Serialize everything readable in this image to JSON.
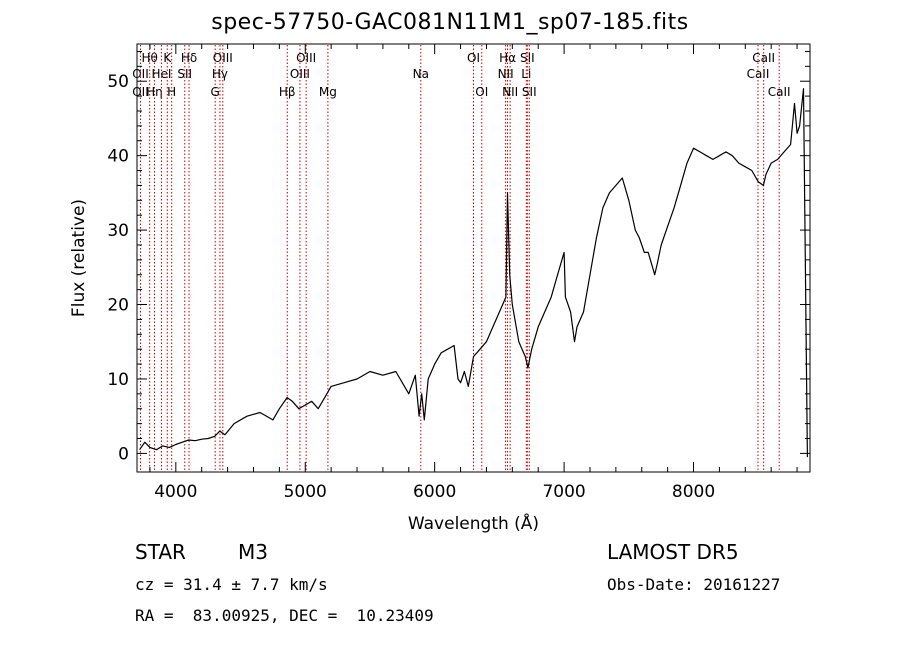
{
  "chart_data": {
    "type": "line",
    "title": "spec-57750-GAC081N11M1_sp07-185.fits",
    "xlabel": "Wavelength (Å)",
    "ylabel": "Flux (relative)",
    "xlim": [
      3700,
      8900
    ],
    "ylim": [
      -2.5,
      55
    ],
    "xticks": [
      4000,
      5000,
      6000,
      7000,
      8000
    ],
    "yticks": [
      0,
      10,
      20,
      30,
      40,
      50
    ],
    "grid": false,
    "line_color": "#000000",
    "marker_color": "#cc0000",
    "series": [
      {
        "values_x": [
          3720,
          3760,
          3800,
          3850,
          3900,
          3950,
          4000,
          4050,
          4100,
          4150,
          4200,
          4250,
          4300,
          4340,
          4380,
          4450,
          4550,
          4650,
          4750,
          4800,
          4860,
          4900,
          4950,
          5000,
          5050,
          5100,
          5150,
          5200,
          5300,
          5400,
          5500,
          5600,
          5700,
          5800,
          5850,
          5880,
          5900,
          5920,
          5950,
          6000,
          6050,
          6100,
          6150,
          6180,
          6200,
          6230,
          6260,
          6300,
          6350,
          6400,
          6450,
          6500,
          6550,
          6563,
          6580,
          6600,
          6650,
          6700,
          6720,
          6750,
          6800,
          6850,
          6900,
          6950,
          7000,
          7010,
          7050,
          7080,
          7100,
          7150,
          7200,
          7250,
          7300,
          7350,
          7400,
          7450,
          7500,
          7550,
          7580,
          7600,
          7620,
          7650,
          7700,
          7720,
          7750,
          7800,
          7850,
          7900,
          7950,
          8000,
          8050,
          8100,
          8150,
          8200,
          8250,
          8300,
          8350,
          8400,
          8450,
          8500,
          8540,
          8560,
          8600,
          8650,
          8700,
          8750,
          8780,
          8800,
          8820,
          8850,
          8880
        ],
        "values_y": [
          0.5,
          1.5,
          0.8,
          0.5,
          1.0,
          0.8,
          1.2,
          1.5,
          1.8,
          1.7,
          1.9,
          2.0,
          2.3,
          3.0,
          2.5,
          4.0,
          5.0,
          5.5,
          4.5,
          6.0,
          7.5,
          7.0,
          6.0,
          6.5,
          7.0,
          6.0,
          7.5,
          9.0,
          9.5,
          10.0,
          11.0,
          10.5,
          11.0,
          8.0,
          10.5,
          5.0,
          8.0,
          4.5,
          10.0,
          12.0,
          13.5,
          14.0,
          14.5,
          10.0,
          9.5,
          11.0,
          9.0,
          13.0,
          14.0,
          15.0,
          17.0,
          19.0,
          21.0,
          35.0,
          24.0,
          20.0,
          15.0,
          13.0,
          11.5,
          14.0,
          17.0,
          19.0,
          21.0,
          24.0,
          27.0,
          21.0,
          19.0,
          15.0,
          17.0,
          19.0,
          24.0,
          29.0,
          33.0,
          35.0,
          36.0,
          37.0,
          34.0,
          30.0,
          29.0,
          28.0,
          27.0,
          27.0,
          24.0,
          25.5,
          28.0,
          30.5,
          33.0,
          36.0,
          39.0,
          41.0,
          40.5,
          40.0,
          39.5,
          40.0,
          40.5,
          40.0,
          39.0,
          38.5,
          38.0,
          36.5,
          36.0,
          37.5,
          39.0,
          39.5,
          40.5,
          41.5,
          47.0,
          43.0,
          44.0,
          49.0,
          -0.5
        ]
      }
    ],
    "line_markers": [
      {
        "label": "OII",
        "x": 3727,
        "row": 1
      },
      {
        "label": "Hθ",
        "x": 3798,
        "row": 0
      },
      {
        "label": "OII",
        "x": 3727,
        "row": 2
      },
      {
        "label": "Hη",
        "x": 3835,
        "row": 2
      },
      {
        "label": "HeI",
        "x": 3889,
        "row": 1
      },
      {
        "label": "K",
        "x": 3934,
        "row": 0
      },
      {
        "label": "H",
        "x": 3968,
        "row": 2
      },
      {
        "label": "SII",
        "x": 4069,
        "row": 1
      },
      {
        "label": "Hδ",
        "x": 4102,
        "row": 0
      },
      {
        "label": "G",
        "x": 4304,
        "row": 2
      },
      {
        "label": "OIII",
        "x": 4363,
        "row": 0
      },
      {
        "label": "Hγ",
        "x": 4341,
        "row": 1
      },
      {
        "label": "Hβ",
        "x": 4861,
        "row": 2
      },
      {
        "label": "OIII",
        "x": 4959,
        "row": 1
      },
      {
        "label": "OIII",
        "x": 5007,
        "row": 0
      },
      {
        "label": "Mg",
        "x": 5175,
        "row": 2
      },
      {
        "label": "Na",
        "x": 5893,
        "row": 1
      },
      {
        "label": "OI",
        "x": 6300,
        "row": 0
      },
      {
        "label": "OI",
        "x": 6364,
        "row": 2
      },
      {
        "label": "NII",
        "x": 6548,
        "row": 1
      },
      {
        "label": "Hα",
        "x": 6563,
        "row": 0
      },
      {
        "label": "NII",
        "x": 6583,
        "row": 2
      },
      {
        "label": "Li",
        "x": 6708,
        "row": 1
      },
      {
        "label": "SII",
        "x": 6716,
        "row": 0
      },
      {
        "label": "SII",
        "x": 6731,
        "row": 2
      },
      {
        "label": "CaII",
        "x": 8498,
        "row": 1
      },
      {
        "label": "CaII",
        "x": 8542,
        "row": 0
      },
      {
        "label": "CaII",
        "x": 8662,
        "row": 2
      }
    ]
  },
  "info": {
    "class": "STAR",
    "subclass": "M3",
    "survey": "LAMOST DR5",
    "cz": "cz = 31.4 ± 7.7 km/s",
    "obs_date": "Obs-Date: 20161227",
    "radec": "RA =  83.00925, DEC =  10.23409"
  }
}
